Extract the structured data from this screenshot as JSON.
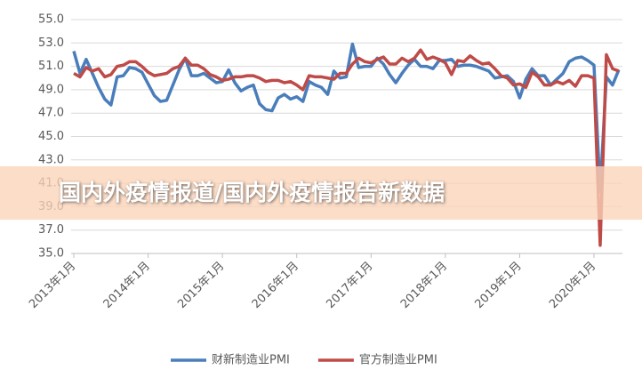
{
  "banner": {
    "text": "国内外疫情报道/国内外疫情报告新数据"
  },
  "chart_data": {
    "type": "line",
    "categories": [
      "2013年1月",
      null,
      null,
      null,
      null,
      null,
      null,
      null,
      null,
      null,
      null,
      null,
      "2014年1月",
      null,
      null,
      null,
      null,
      null,
      null,
      null,
      null,
      null,
      null,
      null,
      "2015年1月",
      null,
      null,
      null,
      null,
      null,
      null,
      null,
      null,
      null,
      null,
      null,
      "2016年1月",
      null,
      null,
      null,
      null,
      null,
      null,
      null,
      null,
      null,
      null,
      null,
      "2017年1月",
      null,
      null,
      null,
      null,
      null,
      null,
      null,
      null,
      null,
      null,
      null,
      "2018年1月",
      null,
      null,
      null,
      null,
      null,
      null,
      null,
      null,
      null,
      null,
      null,
      "2019年1月",
      null,
      null,
      null,
      null,
      null,
      null,
      null,
      null,
      null,
      null,
      null,
      "2020年1月",
      null,
      null,
      null,
      null
    ],
    "series": [
      {
        "name": "财新制造业PMI",
        "color": "#4a7ebb",
        "values": [
          52.3,
          50.4,
          51.6,
          50.4,
          49.2,
          48.2,
          47.7,
          50.1,
          50.2,
          50.9,
          50.8,
          50.5,
          49.5,
          48.5,
          48.0,
          48.1,
          49.4,
          50.7,
          51.7,
          50.2,
          50.2,
          50.4,
          50.0,
          49.6,
          49.7,
          50.7,
          49.6,
          48.9,
          49.2,
          49.4,
          47.8,
          47.3,
          47.2,
          48.3,
          48.6,
          48.2,
          48.4,
          48.0,
          49.7,
          49.4,
          49.2,
          48.6,
          50.6,
          50.0,
          50.1,
          52.9,
          50.9,
          51.0,
          51.0,
          51.7,
          51.2,
          50.3,
          49.6,
          50.4,
          51.1,
          51.6,
          51.0,
          51.0,
          50.8,
          51.5,
          51.5,
          51.6,
          51.0,
          51.1,
          51.1,
          51.0,
          50.8,
          50.6,
          50.0,
          50.1,
          50.2,
          49.7,
          48.3,
          49.9,
          50.8,
          50.2,
          50.2,
          49.4,
          49.9,
          50.4,
          51.4,
          51.7,
          51.8,
          51.5,
          51.1,
          40.3,
          50.1,
          49.4,
          50.7
        ]
      },
      {
        "name": "官方制造业PMI",
        "color": "#be4b48",
        "values": [
          50.4,
          50.1,
          50.9,
          50.6,
          50.8,
          50.1,
          50.3,
          51.0,
          51.1,
          51.4,
          51.4,
          51.0,
          50.5,
          50.2,
          50.3,
          50.4,
          50.8,
          51.0,
          51.7,
          51.1,
          51.1,
          50.8,
          50.3,
          50.1,
          49.8,
          49.9,
          50.1,
          50.1,
          50.2,
          50.2,
          50.0,
          49.7,
          49.8,
          49.8,
          49.6,
          49.7,
          49.4,
          49.0,
          50.2,
          50.1,
          50.1,
          50.0,
          49.9,
          50.4,
          50.4,
          51.2,
          51.7,
          51.4,
          51.3,
          51.6,
          51.8,
          51.2,
          51.2,
          51.7,
          51.4,
          51.7,
          52.4,
          51.6,
          51.8,
          51.6,
          51.3,
          50.3,
          51.5,
          51.4,
          51.9,
          51.5,
          51.2,
          51.3,
          50.8,
          50.2,
          50.0,
          49.4,
          49.5,
          49.2,
          50.5,
          50.1,
          49.4,
          49.4,
          49.7,
          49.5,
          49.8,
          49.3,
          50.2,
          50.2,
          50.0,
          35.7,
          52.0,
          50.8,
          50.6
        ]
      }
    ],
    "ylim": [
      35,
      55
    ],
    "yticks": [
      {
        "value": 35,
        "label": "35.0"
      },
      {
        "value": 37,
        "label": "37.0"
      },
      {
        "value": 39,
        "label": "39.0"
      },
      {
        "value": 41,
        "label": "41.0"
      },
      {
        "value": 43,
        "label": "43.0"
      },
      {
        "value": 45,
        "label": "45.0"
      },
      {
        "value": 47,
        "label": "47.0"
      },
      {
        "value": 49,
        "label": "49.0"
      },
      {
        "value": 51,
        "label": "51.0"
      },
      {
        "value": 53,
        "label": "53.0"
      },
      {
        "value": 55,
        "label": "55.0"
      }
    ],
    "grid": true,
    "legend": "bottom"
  }
}
